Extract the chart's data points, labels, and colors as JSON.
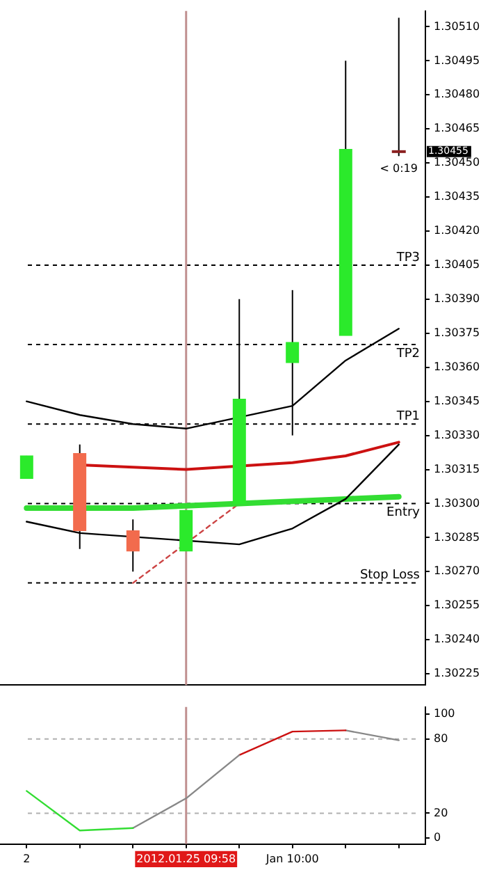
{
  "chart_data": [
    {
      "type": "candlestick",
      "categories": [
        "2",
        null,
        null,
        "2012.01.25 09:58",
        null,
        "Jan 10:00",
        null,
        null
      ],
      "tick_labels": "y",
      "legend": false,
      "grid": false,
      "marker": "none",
      "ohlc": [
        [
          1.30311,
          1.30321,
          1.30311,
          1.30321
        ],
        [
          1.30322,
          1.30326,
          1.3028,
          1.30288
        ],
        [
          1.30288,
          1.30293,
          1.3027,
          1.30279
        ],
        [
          1.30279,
          1.30297,
          1.30279,
          1.30297
        ],
        [
          1.303,
          1.3039,
          1.303,
          1.30346
        ],
        [
          1.30362,
          1.30394,
          1.3033,
          1.30371
        ],
        [
          1.30374,
          1.30495,
          1.30374,
          1.30456
        ],
        [
          1.30455,
          1.30514,
          1.30453,
          1.30455
        ]
      ],
      "colors": [
        "#2bea2b",
        "#f26b4d",
        "#f26b4d",
        "#2bea2b",
        "#2bea2b",
        "#2bea2b",
        "#2bea2b",
        "#8b2020"
      ],
      "ylim": [
        1.3022,
        1.30517
      ],
      "yticks": [
        1.30225,
        {
          "value": 1.3024,
          "label": "1.30240"
        },
        1.30255,
        {
          "value": 1.3027,
          "label": "1.30270"
        },
        1.30285,
        {
          "value": 1.303,
          "label": "1.30300"
        },
        1.30315,
        {
          "value": 1.3033,
          "label": "1.30330"
        },
        1.30345,
        {
          "value": 1.3036,
          "label": "1.30360"
        },
        1.30375,
        {
          "value": 1.3039,
          "label": "1.30390"
        },
        1.30405,
        {
          "value": 1.3042,
          "label": "1.30420"
        },
        1.30435,
        {
          "value": 1.3045,
          "label": "1.30450"
        },
        1.30465,
        {
          "value": 1.3048,
          "label": "1.30480"
        },
        1.30495,
        {
          "value": 1.3051,
          "label": "1.30510"
        }
      ],
      "series": [
        {
          "type": "line",
          "color": "#000000",
          "values": [
            1.30345,
            1.30339,
            1.30335,
            1.30333,
            null,
            1.30343,
            1.30363,
            1.30377
          ]
        },
        {
          "type": "line",
          "color": "#000000",
          "values": [
            1.30292,
            1.30287,
            null,
            null,
            1.30282,
            1.30289,
            1.30302,
            1.30326
          ]
        },
        {
          "type": "line",
          "color": "#cc1111",
          "values": [
            null,
            1.30317,
            1.30316,
            1.30315,
            null,
            1.30318,
            1.30321,
            1.30327
          ]
        },
        {
          "type": "line",
          "color": "#33dd33",
          "values": [
            1.30298,
            null,
            1.30298,
            1.30299,
            1.303,
            1.30301,
            1.30302,
            1.30303
          ]
        },
        {
          "type": "line",
          "color": "#cc4444",
          "line_style": "dashed",
          "values": [
            null,
            null,
            1.30265,
            null,
            1.303,
            null,
            null,
            null
          ]
        }
      ],
      "ref_lines": [
        {
          "axis": "y",
          "value": 1.30405,
          "label": "TP3",
          "color": "#000000",
          "line_style": "dashed"
        },
        {
          "axis": "y",
          "value": 1.3037,
          "label": "TP2",
          "color": "#000000",
          "line_style": "dashed"
        },
        {
          "axis": "y",
          "value": 1.30335,
          "label": "TP1",
          "color": "#000000",
          "line_style": "dashed"
        },
        {
          "axis": "y",
          "value": 1.303,
          "label": "Entry",
          "color": "#000000",
          "line_style": "dashed"
        },
        {
          "axis": "y",
          "value": 1.30265,
          "label": "Stop Loss",
          "color": "#000000",
          "line_style": "dashed"
        },
        {
          "axis": "x",
          "value": "2012.01.25 09:58",
          "color": "#c09090"
        }
      ],
      "annotations": [
        "< 0:19",
        "1.30455"
      ]
    },
    {
      "type": "line",
      "categories": [
        "2",
        null,
        null,
        "2012.01.25 09:58",
        null,
        "Jan 10:00",
        null,
        null
      ],
      "legend": false,
      "grid": false,
      "marker": "none",
      "ylim": [
        -5,
        106
      ],
      "yticks": [
        0,
        20,
        80,
        100
      ],
      "series": [
        {
          "color": "#33dd33",
          "values": [
            38,
            6,
            8,
            null,
            null,
            null,
            null,
            null
          ]
        },
        {
          "color": "#888888",
          "values": [
            null,
            null,
            8,
            32,
            67,
            null,
            null,
            null
          ]
        },
        {
          "color": "#cc1111",
          "values": [
            null,
            null,
            null,
            null,
            67,
            86,
            87,
            null
          ]
        },
        {
          "color": "#888888",
          "values": [
            null,
            null,
            null,
            null,
            null,
            null,
            87,
            79
          ]
        }
      ],
      "ref_lines": [
        {
          "axis": "y",
          "value": 20,
          "color": "#b0b0b0",
          "line_style": "dashed"
        },
        {
          "axis": "y",
          "value": 80,
          "color": "#b0b0b0",
          "line_style": "dashed"
        },
        {
          "axis": "x",
          "value": "2012.01.25 09:58",
          "color": "#c09090"
        }
      ]
    }
  ]
}
